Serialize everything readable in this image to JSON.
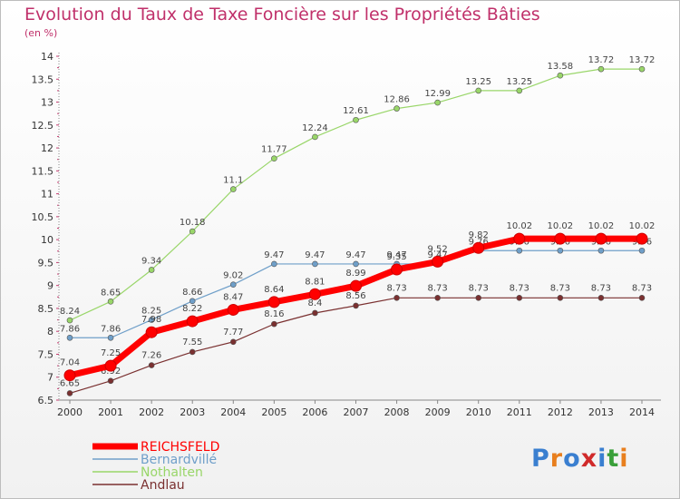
{
  "header": {
    "title": "Evolution du Taux de Taxe Foncière sur les Propriétés Bâties",
    "subtitle": "(en %)"
  },
  "logo": {
    "text": "Proxiti",
    "colors": [
      "#3a7fd0",
      "#e87f1e",
      "#3a7fd0",
      "#d02a2a",
      "#3a7fd0",
      "#3a9f3a",
      "#e87f1e"
    ]
  },
  "chart_data": {
    "type": "line",
    "title": "Evolution du Taux de Taxe Foncière sur les Propriétés Bâties",
    "ylabel": "(en %)",
    "xlabel": "",
    "x": [
      2000,
      2001,
      2002,
      2003,
      2004,
      2005,
      2006,
      2007,
      2008,
      2009,
      2010,
      2011,
      2012,
      2013,
      2014
    ],
    "ylim": [
      6.5,
      14
    ],
    "yticks": [
      6.5,
      7,
      7.5,
      8,
      8.5,
      9,
      9.5,
      10,
      10.5,
      11,
      11.5,
      12,
      12.5,
      13,
      13.5,
      14
    ],
    "legend_position": "bottom-left",
    "series": [
      {
        "name": "Nothalten",
        "color": "#99d669",
        "width": 1.2,
        "values": [
          8.24,
          8.65,
          9.34,
          10.18,
          11.1,
          11.77,
          12.24,
          12.61,
          12.86,
          12.99,
          13.25,
          13.25,
          13.58,
          13.72,
          13.72
        ],
        "labels": [
          "8.24",
          "8.65",
          "9.34",
          "10.18",
          "11.1",
          "11.77",
          "12.24",
          "12.61",
          "12.86",
          "12.99",
          "13.25",
          "13.25",
          "13.58",
          "13.72",
          "13.72"
        ]
      },
      {
        "name": "Bernardvillé",
        "color": "#6f9fc9",
        "width": 1.2,
        "values": [
          7.86,
          7.86,
          8.25,
          8.66,
          9.02,
          9.47,
          9.47,
          9.47,
          9.47,
          9.47,
          9.76,
          9.76,
          9.76,
          9.76,
          9.76
        ],
        "labels": [
          "7.86",
          "7.86",
          "8.25",
          "8.66",
          "9.02",
          "9.47",
          "9.47",
          "9.47",
          "9.47",
          "9.47",
          "9.76",
          "9.76",
          "9.76",
          "9.76",
          "9.76"
        ]
      },
      {
        "name": "Andlau",
        "color": "#7a3030",
        "width": 1.2,
        "values": [
          6.65,
          6.92,
          7.26,
          7.55,
          7.77,
          8.16,
          8.4,
          8.56,
          8.73,
          8.73,
          8.73,
          8.73,
          8.73,
          8.73,
          8.73
        ],
        "labels": [
          "6.65",
          "6.92",
          "7.26",
          "7.55",
          "7.77",
          "8.16",
          "8.4",
          "8.56",
          "8.73",
          "8.73",
          "8.73",
          "8.73",
          "8.73",
          "8.73",
          "8.73"
        ]
      },
      {
        "name": "REICHSFELD",
        "color": "#ff0000",
        "width": 7,
        "values": [
          7.04,
          7.25,
          7.98,
          8.22,
          8.47,
          8.64,
          8.81,
          8.99,
          9.35,
          9.52,
          9.82,
          10.02,
          10.02,
          10.02,
          10.02
        ],
        "labels": [
          "7.04",
          "7.25",
          "7.98",
          "8.22",
          "8.47",
          "8.64",
          "8.81",
          "8.99",
          "9.35",
          "9.52",
          "9.82",
          "10.02",
          "10.02",
          "10.02",
          "10.02"
        ]
      }
    ],
    "legend": [
      {
        "name": "REICHSFELD",
        "color": "#ff0000",
        "width": 7
      },
      {
        "name": "Bernardvillé",
        "color": "#6f9fc9",
        "width": 1.5
      },
      {
        "name": "Nothalten",
        "color": "#99d669",
        "width": 1.5
      },
      {
        "name": "Andlau",
        "color": "#7a3030",
        "width": 1.5
      }
    ]
  }
}
